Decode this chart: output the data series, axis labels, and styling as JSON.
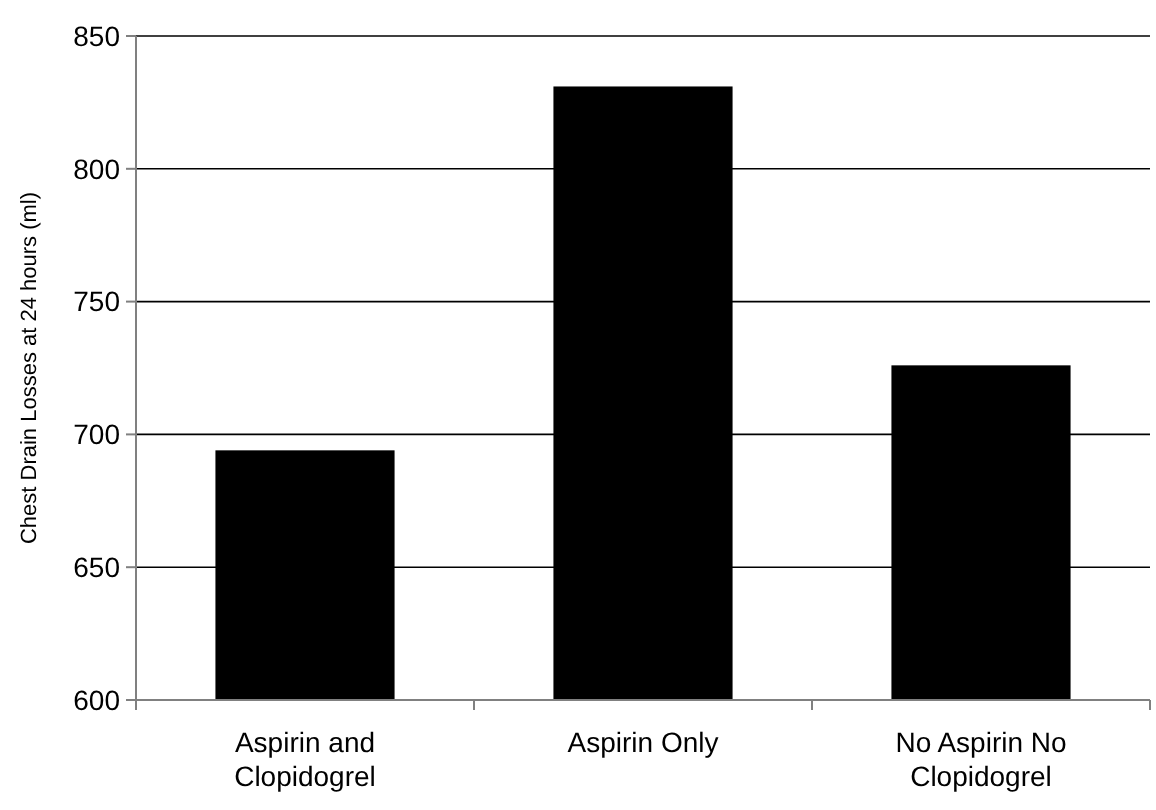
{
  "chart_data": {
    "type": "bar",
    "ylabel": "Chest Drain Losses at 24 hours (ml)",
    "categories": [
      "Aspirin and Clopidogrel",
      "Aspirin Only",
      "No Aspirin No Clopidogrel"
    ],
    "values": [
      694,
      831,
      726
    ],
    "color": "#000000",
    "ylim": [
      600,
      850
    ],
    "yticks": [
      600,
      650,
      700,
      750,
      800,
      850
    ],
    "grid": "y"
  }
}
